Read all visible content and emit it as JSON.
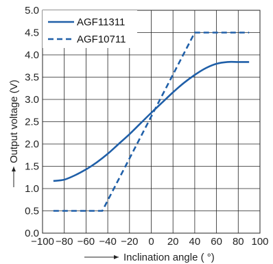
{
  "chart_data": {
    "type": "line",
    "xlabel": "Inclination angle ( °)",
    "ylabel": "Output voltage (V)",
    "xlim": [
      -100,
      100
    ],
    "ylim": [
      0.0,
      5.0
    ],
    "x_ticks": [
      "−100",
      "−80",
      "−60",
      "−40",
      "−20",
      "0",
      "20",
      "40",
      "60",
      "80",
      "100"
    ],
    "y_ticks": [
      "0.0",
      "0.5",
      "1.0",
      "1.5",
      "2.0",
      "2.5",
      "3.0",
      "3.5",
      "4.0",
      "4.5",
      "5.0"
    ],
    "grid": true,
    "legend_position": "top-left",
    "series": [
      {
        "name": "AGF11311",
        "style": "solid",
        "color": "#1f5fa8",
        "x": [
          -90,
          -80,
          -70,
          -60,
          -50,
          -40,
          -30,
          -20,
          -10,
          0,
          10,
          20,
          30,
          40,
          50,
          60,
          70,
          80,
          90
        ],
        "y": [
          1.17,
          1.2,
          1.3,
          1.43,
          1.59,
          1.78,
          2.0,
          2.22,
          2.46,
          2.7,
          2.93,
          3.16,
          3.37,
          3.55,
          3.7,
          3.8,
          3.84,
          3.84,
          3.84
        ]
      },
      {
        "name": "AGF10711",
        "style": "dashed",
        "color": "#1f5fa8",
        "x": [
          -90,
          -45,
          40,
          90
        ],
        "y": [
          0.5,
          0.5,
          4.5,
          4.5
        ]
      }
    ]
  }
}
